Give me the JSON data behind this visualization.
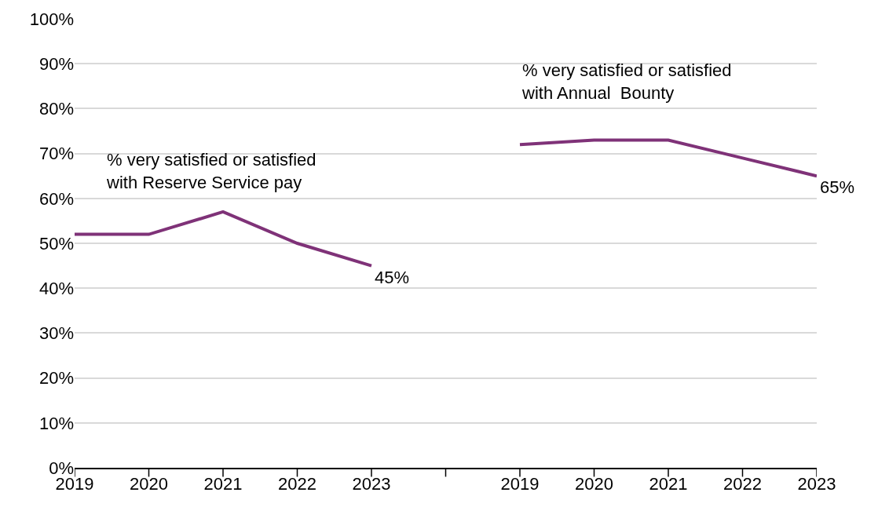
{
  "chart_data": {
    "type": "line",
    "categories": [
      "2019",
      "2020",
      "2021",
      "2022",
      "2023",
      null,
      "2019",
      "2020",
      "2021",
      "2022",
      "2023"
    ],
    "series": [
      {
        "name": "% very satisfied or satisfied\nwith Reserve Service pay",
        "color": "#7f3278",
        "values": [
          52,
          52,
          57,
          50,
          45,
          null,
          null,
          null,
          null,
          null,
          null
        ],
        "value_labels": [
          null,
          null,
          null,
          null,
          "45%",
          null,
          null,
          null,
          null,
          null,
          null
        ]
      },
      {
        "name": "% very satisfied or satisfied\nwith Annual  Bounty",
        "color": "#7f3278",
        "values": [
          null,
          null,
          null,
          null,
          null,
          null,
          72,
          73,
          73,
          69,
          65
        ],
        "value_labels": [
          null,
          null,
          null,
          null,
          null,
          null,
          null,
          null,
          null,
          null,
          "65%"
        ]
      }
    ],
    "ylim": [
      0,
      100
    ],
    "yticks": [
      {
        "value": 0,
        "label": "0%"
      },
      {
        "value": 10,
        "label": "10%"
      },
      {
        "value": 20,
        "label": "20%"
      },
      {
        "value": 30,
        "label": "30%"
      },
      {
        "value": 40,
        "label": "40%"
      },
      {
        "value": 50,
        "label": "50%"
      },
      {
        "value": 60,
        "label": "60%"
      },
      {
        "value": 70,
        "label": "70%"
      },
      {
        "value": 80,
        "label": "80%"
      },
      {
        "value": 90,
        "label": "90%"
      },
      {
        "value": 100,
        "label": "100%"
      }
    ],
    "grid": "y",
    "legend": false,
    "marker": "none",
    "line_style": "solid"
  }
}
